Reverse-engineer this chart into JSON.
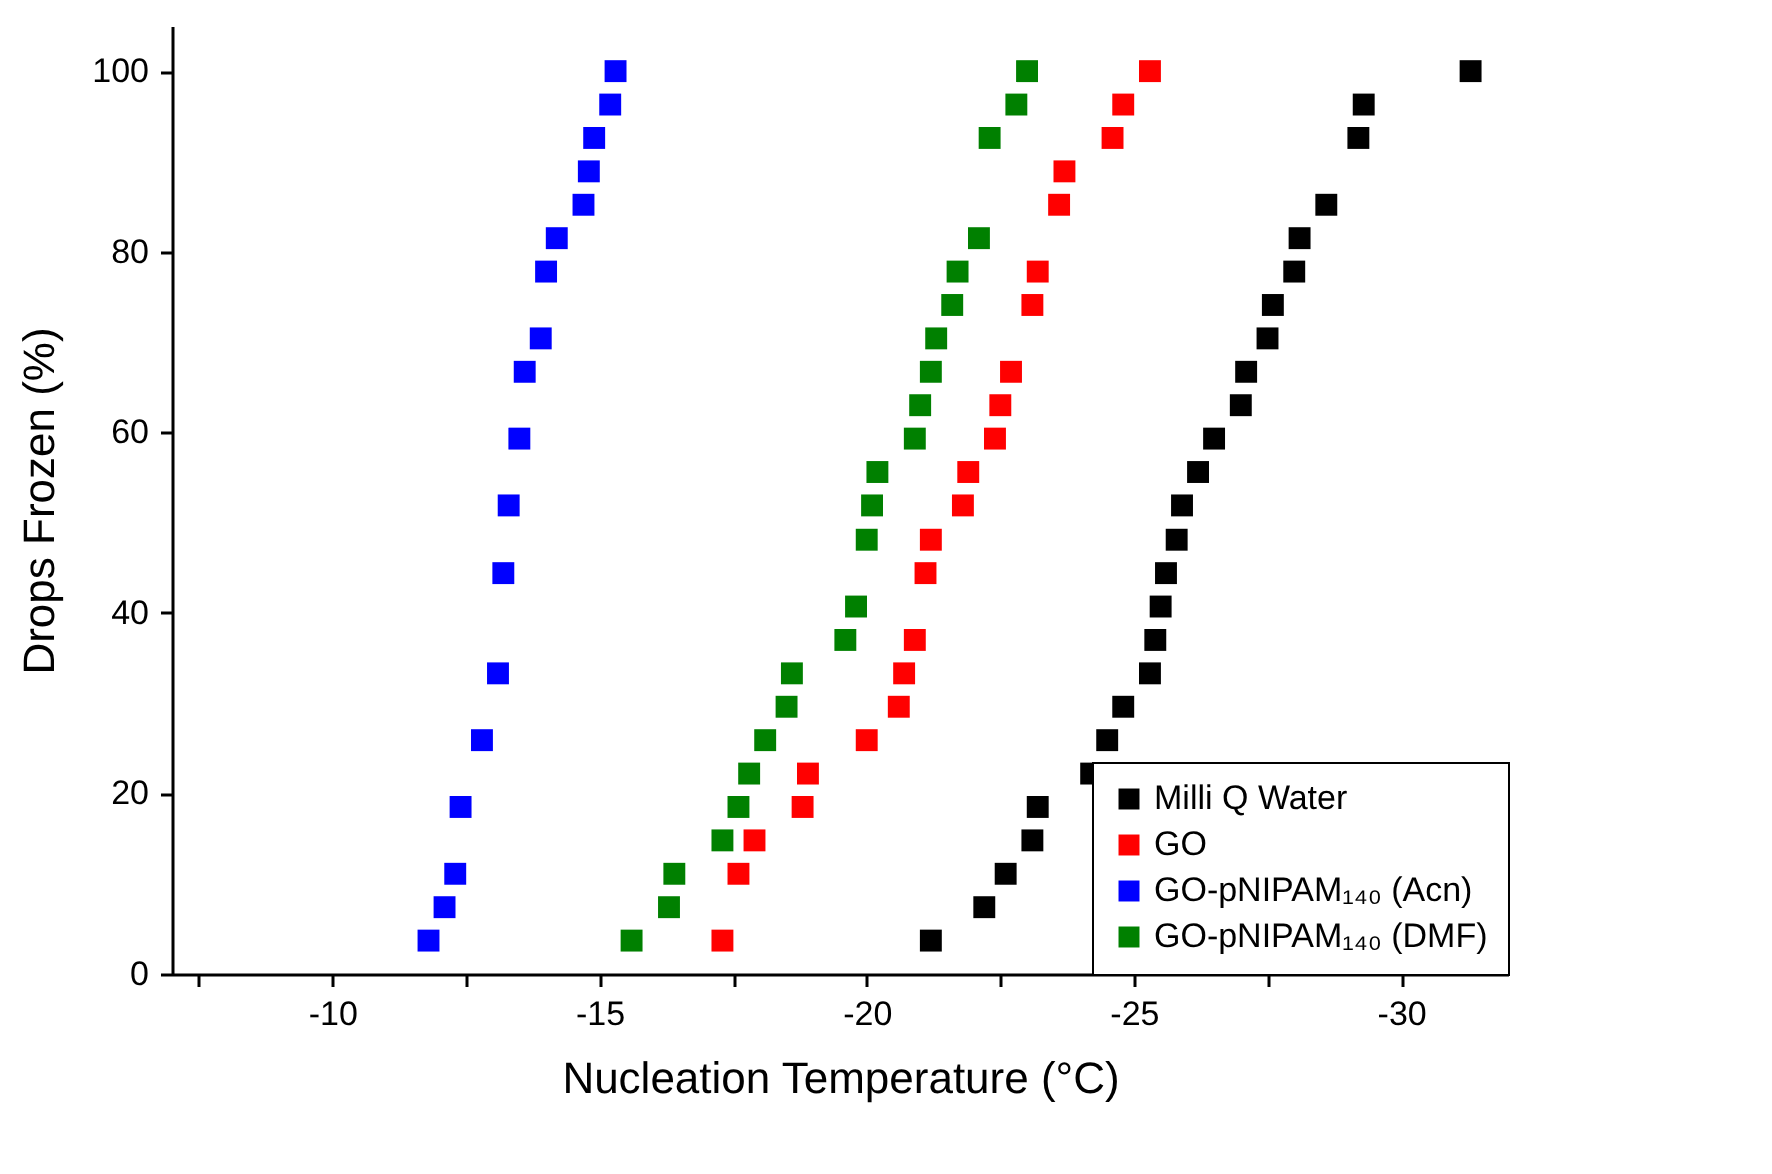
{
  "chart_data": {
    "type": "scatter",
    "xlabel": "Nucleation Temperature (°C)",
    "ylabel": "Drops Frozen (%)",
    "xlim": [
      -7,
      -32
    ],
    "ylim": [
      0,
      105
    ],
    "xticks": [
      {
        "value": -7.5,
        "label": null
      },
      -10,
      {
        "value": -12.5,
        "label": null
      },
      -15,
      {
        "value": -17.5,
        "label": null
      },
      -20,
      {
        "value": -22.5,
        "label": null
      },
      -25,
      {
        "value": -27.5,
        "label": null
      },
      -30
    ],
    "yticks": [
      0,
      20,
      40,
      60,
      80,
      100
    ],
    "grid": false,
    "legend": "bottom right",
    "marker": "square",
    "series": [
      {
        "name": "Milli Q Water",
        "color": "#000000",
        "x": [
          -21.2,
          -22.2,
          -22.6,
          -23.1,
          -23.2,
          -24.2,
          -24.5,
          -24.8,
          -25.3,
          -25.4,
          -25.5,
          -25.6,
          -25.8,
          -25.9,
          -26.2,
          -26.5,
          -27.0,
          -27.1,
          -27.5,
          -27.6,
          -28.0,
          -28.1,
          -28.6,
          -29.2,
          -29.3,
          -31.3
        ],
        "values": [
          3.7,
          7.4,
          11.1,
          14.8,
          18.5,
          22.2,
          25.9,
          29.6,
          33.3,
          37.0,
          40.7,
          44.4,
          48.1,
          51.9,
          55.6,
          59.3,
          63.0,
          66.7,
          70.4,
          74.1,
          77.8,
          81.5,
          85.2,
          92.6,
          96.3,
          100
        ]
      },
      {
        "name": "GO",
        "color": "#ff0000",
        "x": [
          -17.3,
          -17.6,
          -17.9,
          -18.8,
          -18.9,
          -20.0,
          -20.6,
          -20.7,
          -20.9,
          -21.1,
          -21.2,
          -21.8,
          -21.9,
          -22.4,
          -22.5,
          -22.7,
          -23.1,
          -23.2,
          -23.6,
          -23.7,
          -24.6,
          -24.8,
          -25.3
        ],
        "values": [
          3.7,
          11.1,
          14.8,
          18.5,
          22.2,
          25.9,
          29.6,
          33.3,
          37.0,
          44.4,
          48.1,
          51.9,
          55.6,
          59.3,
          63.0,
          66.7,
          74.1,
          77.8,
          85.2,
          88.9,
          92.6,
          96.3,
          100
        ]
      },
      {
        "name": "GO-pNIPAM₁₄₀ (Acn)",
        "color": "#0000ff",
        "x": [
          -11.8,
          -12.1,
          -12.3,
          -12.4,
          -12.8,
          -13.1,
          -13.2,
          -13.3,
          -13.5,
          -13.6,
          -13.9,
          -14.0,
          -14.2,
          -14.7,
          -14.8,
          -14.9,
          -15.2,
          -15.3
        ],
        "values": [
          3.7,
          7.4,
          11.1,
          18.5,
          25.9,
          33.3,
          44.4,
          51.9,
          59.3,
          66.7,
          70.4,
          77.8,
          81.5,
          85.2,
          88.9,
          92.6,
          96.3,
          100
        ]
      },
      {
        "name": "GO-pNIPAM₁₄₀ (DMF)",
        "color": "#008000",
        "x": [
          -15.6,
          -16.3,
          -16.4,
          -17.3,
          -17.6,
          -17.8,
          -18.1,
          -18.5,
          -18.6,
          -19.6,
          -19.8,
          -20.0,
          -20.1,
          -20.2,
          -20.9,
          -21.0,
          -21.2,
          -21.3,
          -21.6,
          -21.7,
          -22.1,
          -22.3,
          -22.8,
          -23.0
        ],
        "values": [
          3.7,
          7.4,
          11.1,
          14.8,
          18.5,
          22.2,
          25.9,
          29.6,
          33.3,
          37.0,
          40.7,
          48.1,
          51.9,
          55.6,
          59.3,
          63.0,
          66.7,
          70.4,
          74.1,
          77.8,
          81.5,
          92.6,
          96.3,
          100
        ]
      }
    ]
  }
}
